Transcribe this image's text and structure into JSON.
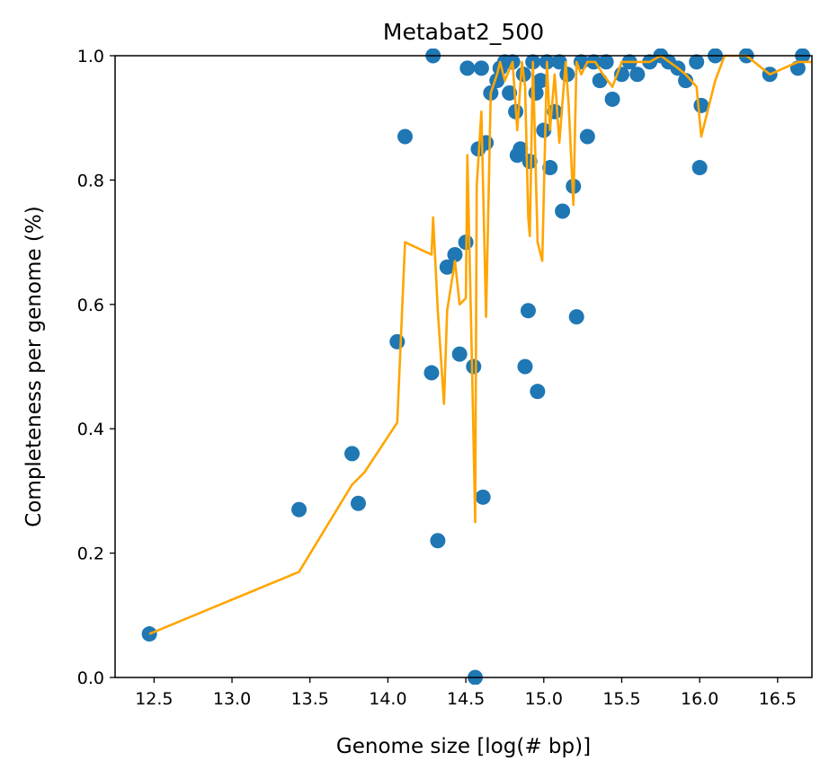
{
  "chart_data": {
    "type": "scatter",
    "title": "Metabat2_500",
    "xlabel": "Genome size [log(# bp)]",
    "ylabel": "Completeness per genome (%)",
    "xlim": [
      12.25,
      16.72
    ],
    "ylim": [
      0.0,
      1.0
    ],
    "xticks": [
      "12.5",
      "13.0",
      "13.5",
      "14.0",
      "14.5",
      "15.0",
      "15.5",
      "16.0",
      "16.5"
    ],
    "yticks": [
      "0.0",
      "0.2",
      "0.4",
      "0.6",
      "0.8",
      "1.0"
    ],
    "grid": false,
    "colors": {
      "scatter": "#1f77b4",
      "line": "#ffa500"
    },
    "series": [
      {
        "kind": "scatter",
        "points": [
          [
            12.47,
            0.07
          ],
          [
            13.43,
            0.27
          ],
          [
            13.77,
            0.36
          ],
          [
            13.81,
            0.28
          ],
          [
            14.06,
            0.54
          ],
          [
            14.11,
            0.87
          ],
          [
            14.28,
            0.49
          ],
          [
            14.29,
            1.0
          ],
          [
            14.32,
            0.22
          ],
          [
            14.38,
            0.66
          ],
          [
            14.43,
            0.68
          ],
          [
            14.46,
            0.52
          ],
          [
            14.5,
            0.7
          ],
          [
            14.51,
            0.98
          ],
          [
            14.55,
            0.5
          ],
          [
            14.56,
            0.0
          ],
          [
            14.58,
            0.85
          ],
          [
            14.6,
            0.98
          ],
          [
            14.61,
            0.29
          ],
          [
            14.63,
            0.86
          ],
          [
            14.66,
            0.94
          ],
          [
            14.7,
            0.96
          ],
          [
            14.72,
            0.98
          ],
          [
            14.75,
            0.99
          ],
          [
            14.78,
            0.94
          ],
          [
            14.8,
            0.99
          ],
          [
            14.82,
            0.91
          ],
          [
            14.83,
            0.84
          ],
          [
            14.85,
            0.85
          ],
          [
            14.87,
            0.97
          ],
          [
            14.88,
            0.5
          ],
          [
            14.9,
            0.59
          ],
          [
            14.91,
            0.83
          ],
          [
            14.93,
            0.99
          ],
          [
            14.95,
            0.94
          ],
          [
            14.96,
            0.46
          ],
          [
            14.98,
            0.96
          ],
          [
            15.0,
            0.88
          ],
          [
            15.02,
            0.99
          ],
          [
            15.04,
            0.82
          ],
          [
            15.07,
            0.91
          ],
          [
            15.1,
            0.99
          ],
          [
            15.12,
            0.75
          ],
          [
            15.15,
            0.97
          ],
          [
            15.19,
            0.79
          ],
          [
            15.21,
            0.58
          ],
          [
            15.24,
            0.99
          ],
          [
            15.28,
            0.87
          ],
          [
            15.32,
            0.99
          ],
          [
            15.36,
            0.96
          ],
          [
            15.4,
            0.99
          ],
          [
            15.44,
            0.93
          ],
          [
            15.5,
            0.97
          ],
          [
            15.55,
            0.99
          ],
          [
            15.6,
            0.97
          ],
          [
            15.68,
            0.99
          ],
          [
            15.75,
            1.0
          ],
          [
            15.8,
            0.99
          ],
          [
            15.86,
            0.98
          ],
          [
            15.91,
            0.96
          ],
          [
            15.98,
            0.99
          ],
          [
            16.01,
            0.92
          ],
          [
            16.0,
            0.82
          ],
          [
            16.1,
            1.0
          ],
          [
            16.3,
            1.0
          ],
          [
            16.45,
            0.97
          ],
          [
            16.63,
            0.98
          ],
          [
            16.66,
            1.0
          ]
        ]
      },
      {
        "kind": "line",
        "points": [
          [
            12.47,
            0.07
          ],
          [
            13.43,
            0.17
          ],
          [
            13.77,
            0.31
          ],
          [
            13.85,
            0.33
          ],
          [
            14.06,
            0.41
          ],
          [
            14.11,
            0.7
          ],
          [
            14.28,
            0.68
          ],
          [
            14.29,
            0.74
          ],
          [
            14.32,
            0.59
          ],
          [
            14.36,
            0.44
          ],
          [
            14.38,
            0.59
          ],
          [
            14.43,
            0.67
          ],
          [
            14.46,
            0.6
          ],
          [
            14.5,
            0.61
          ],
          [
            14.51,
            0.84
          ],
          [
            14.54,
            0.5
          ],
          [
            14.56,
            0.25
          ],
          [
            14.57,
            0.79
          ],
          [
            14.6,
            0.91
          ],
          [
            14.63,
            0.58
          ],
          [
            14.66,
            0.94
          ],
          [
            14.7,
            0.97
          ],
          [
            14.72,
            0.99
          ],
          [
            14.75,
            0.96
          ],
          [
            14.8,
            0.99
          ],
          [
            14.83,
            0.88
          ],
          [
            14.86,
            0.99
          ],
          [
            14.88,
            0.95
          ],
          [
            14.9,
            0.74
          ],
          [
            14.91,
            0.71
          ],
          [
            14.93,
            0.99
          ],
          [
            14.96,
            0.7
          ],
          [
            14.99,
            0.67
          ],
          [
            15.02,
            0.99
          ],
          [
            15.04,
            0.88
          ],
          [
            15.07,
            0.97
          ],
          [
            15.1,
            0.86
          ],
          [
            15.14,
            0.99
          ],
          [
            15.16,
            0.92
          ],
          [
            15.19,
            0.76
          ],
          [
            15.21,
            0.99
          ],
          [
            15.24,
            0.97
          ],
          [
            15.28,
            0.99
          ],
          [
            15.33,
            0.99
          ],
          [
            15.38,
            0.97
          ],
          [
            15.44,
            0.95
          ],
          [
            15.5,
            0.99
          ],
          [
            15.6,
            0.99
          ],
          [
            15.68,
            0.99
          ],
          [
            15.75,
            1.0
          ],
          [
            15.86,
            0.98
          ],
          [
            15.91,
            0.97
          ],
          [
            15.98,
            0.95
          ],
          [
            16.01,
            0.87
          ],
          [
            16.1,
            0.96
          ],
          [
            16.16,
            1.0
          ],
          [
            16.3,
            1.0
          ],
          [
            16.45,
            0.97
          ],
          [
            16.63,
            0.99
          ],
          [
            16.72,
            0.99
          ]
        ]
      }
    ]
  }
}
